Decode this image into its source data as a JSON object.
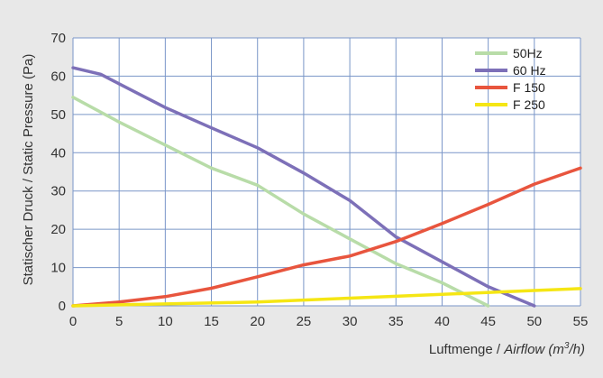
{
  "chart_data": {
    "type": "line",
    "title": "",
    "xlabel_prefix": "Luftmenge / ",
    "xlabel_italic": "Airflow (m",
    "xlabel_sup": "3",
    "xlabel_suffix": "/h)",
    "ylabel": "Statischer Druck / Static Pressure (Pa)",
    "xlim": [
      0,
      55
    ],
    "ylim": [
      0,
      70
    ],
    "xticks": [
      0,
      5,
      10,
      15,
      20,
      25,
      30,
      35,
      40,
      45,
      50,
      55
    ],
    "yticks": [
      0,
      10,
      20,
      30,
      40,
      50,
      60,
      70
    ],
    "grid": true,
    "legend_position": "top-right",
    "series": [
      {
        "name": "50Hz",
        "color": "#b8dca8",
        "points": [
          [
            0,
            54.5
          ],
          [
            5,
            48
          ],
          [
            10,
            42
          ],
          [
            15,
            36
          ],
          [
            20,
            31.5
          ],
          [
            25,
            24
          ],
          [
            30,
            17.5
          ],
          [
            35,
            11
          ],
          [
            40,
            6
          ],
          [
            45,
            0
          ]
        ]
      },
      {
        "name": "60 Hz",
        "color": "#7d70b8",
        "points": [
          [
            0,
            62.2
          ],
          [
            3,
            60.5
          ],
          [
            5,
            58
          ],
          [
            10,
            51.8
          ],
          [
            15,
            46.5
          ],
          [
            20,
            41.3
          ],
          [
            25,
            34.7
          ],
          [
            30,
            27.5
          ],
          [
            35,
            18
          ],
          [
            40,
            11.5
          ],
          [
            45,
            5
          ],
          [
            50,
            0
          ]
        ]
      },
      {
        "name": "F 150",
        "color": "#e8553e",
        "points": [
          [
            0,
            0
          ],
          [
            5,
            1
          ],
          [
            10,
            2.4
          ],
          [
            15,
            4.6
          ],
          [
            20,
            7.6
          ],
          [
            25,
            10.7
          ],
          [
            30,
            13
          ],
          [
            35,
            16.8
          ],
          [
            40,
            21.5
          ],
          [
            45,
            26.5
          ],
          [
            50,
            31.8
          ],
          [
            55,
            36
          ]
        ]
      },
      {
        "name": "F 250",
        "color": "#f5e614",
        "points": [
          [
            0,
            0
          ],
          [
            10,
            0.5
          ],
          [
            20,
            1
          ],
          [
            30,
            2
          ],
          [
            40,
            3
          ],
          [
            50,
            4
          ],
          [
            55,
            4.5
          ]
        ]
      }
    ]
  }
}
